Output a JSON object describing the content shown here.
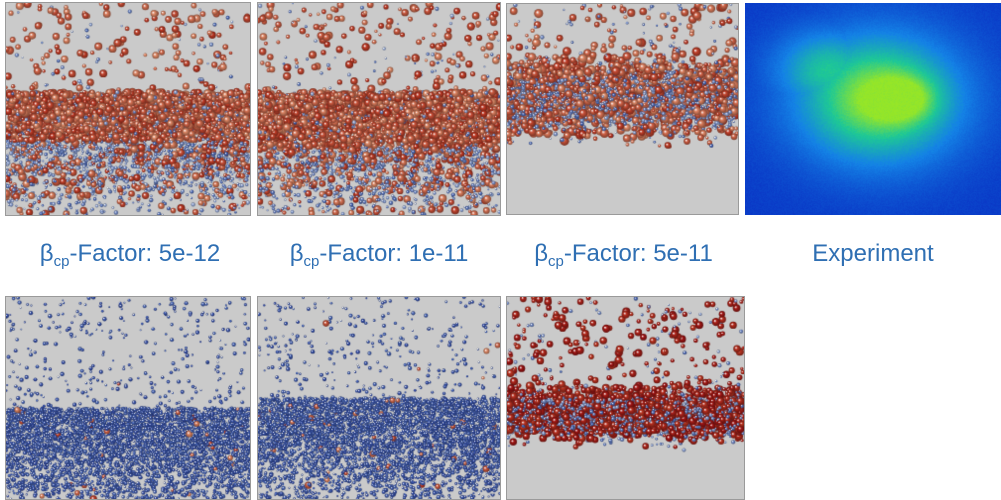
{
  "captions": {
    "c1": {
      "symbol": "β",
      "sub": "cp",
      "rest": "-Factor: 5e-12"
    },
    "c2": {
      "symbol": "β",
      "sub": "cp",
      "rest": "-Factor: 1e-11"
    },
    "c3": {
      "symbol": "β",
      "sub": "cp",
      "rest": "-Factor: 5e-11"
    },
    "c4": {
      "text": "Experiment"
    }
  },
  "colors": {
    "caption": "#2f6fb3",
    "background": "#c9c9c9",
    "particle_blue": "#4a66b8",
    "particle_red": "#c0402a",
    "particle_orange": "#e08a66"
  }
}
